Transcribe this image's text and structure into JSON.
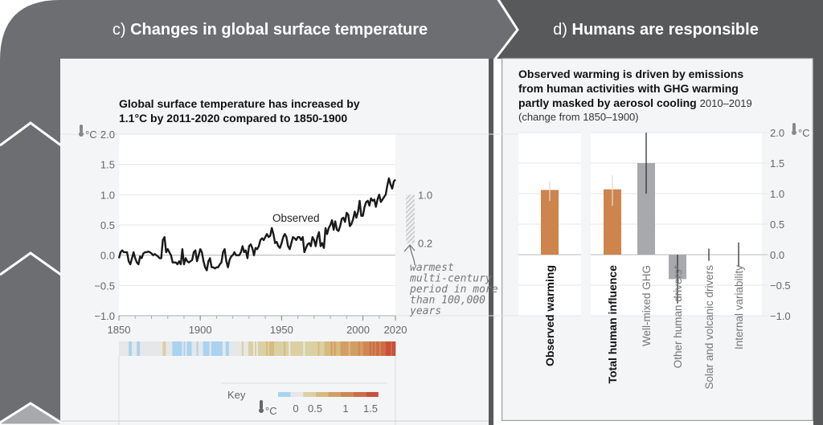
{
  "panel_c": {
    "letter": "c)",
    "heading": "Changes in global surface temperature"
  },
  "panel_d": {
    "letter": "d)",
    "heading": "Humans are responsible"
  },
  "colors": {
    "background_grey": "#6d6e71",
    "header_dark": "#58595b",
    "panel_bg": "#f4f5f7",
    "orange_bar": "#cd844d",
    "grey_bar": "#a7a9ac",
    "stripe_key": [
      "#a9d3f0",
      "#e6e7e8",
      "#dad0a2",
      "#d6bb80",
      "#d19f64",
      "#cf8756",
      "#cc6d45",
      "#c8503a"
    ]
  },
  "chart_data": [
    {
      "type": "line",
      "title": "Global surface temperature has increased by 1.1°C by 2011-2020 compared to 1850-1900",
      "ylabel": "°C",
      "ylim": [
        -1.0,
        2.0
      ],
      "yticks": [
        "2.0",
        "1.5",
        "1.0",
        "0.5",
        "0.0",
        "−0.5",
        "−1.0"
      ],
      "xlim": [
        1850,
        2020
      ],
      "xticks": [
        "1850",
        "1900",
        "1950",
        "2000",
        "2020"
      ],
      "grid": true,
      "series": [
        {
          "name": "Observed",
          "x_start": 1850,
          "values": [
            -0.05,
            0.05,
            0.08,
            0.05,
            0.05,
            0.05,
            -0.1,
            -0.15,
            -0.05,
            0.05,
            -0.05,
            -0.12,
            -0.15,
            -0.02,
            -0.05,
            0.03,
            0.05,
            0.05,
            0.06,
            0.05,
            0.03,
            0.0,
            0.02,
            0.0,
            -0.02,
            -0.05,
            -0.05,
            0.25,
            0.3,
            0.05,
            0.1,
            0.05,
            0.0,
            -0.12,
            -0.12,
            -0.12,
            -0.15,
            -0.1,
            -0.15,
            0.1,
            -0.15,
            -0.05,
            -0.1,
            -0.12,
            -0.1,
            -0.08,
            0.05,
            0.08,
            -0.1,
            0.0,
            0.1,
            0.05,
            -0.1,
            -0.2,
            -0.25,
            -0.1,
            -0.05,
            -0.2,
            -0.2,
            -0.22,
            -0.2,
            -0.2,
            -0.15,
            -0.12,
            0.05,
            0.1,
            -0.1,
            -0.2,
            -0.08,
            -0.02,
            0.0,
            0.05,
            0.0,
            0.0,
            0.0,
            0.05,
            0.15,
            0.05,
            0.08,
            -0.05,
            0.15,
            0.18,
            0.12,
            0.0,
            0.12,
            0.1,
            0.15,
            0.25,
            0.28,
            0.25,
            0.3,
            0.35,
            0.3,
            0.32,
            0.45,
            0.35,
            0.2,
            0.22,
            0.15,
            0.12,
            0.2,
            0.3,
            0.35,
            0.3,
            0.15,
            0.1,
            0.2,
            0.3,
            0.28,
            0.25,
            0.3,
            0.3,
            0.25,
            0.3,
            0.05,
            0.12,
            0.18,
            0.2,
            0.15,
            0.3,
            0.25,
            0.15,
            0.3,
            0.38,
            0.15,
            0.2,
            0.12,
            0.45,
            0.35,
            0.45,
            0.5,
            0.58,
            0.42,
            0.56,
            0.42,
            0.4,
            0.48,
            0.6,
            0.62,
            0.55,
            0.7,
            0.67,
            0.48,
            0.52,
            0.6,
            0.72,
            0.62,
            0.72,
            0.9,
            0.65,
            0.65,
            0.8,
            0.88,
            0.9,
            0.82,
            0.94,
            0.9,
            0.92,
            0.8,
            0.92,
            1.0,
            0.88,
            0.92,
            0.96,
            1.0,
            1.15,
            1.27,
            1.17,
            1.1,
            1.22,
            1.25
          ]
        }
      ],
      "paleo_range": {
        "low": 0.2,
        "high": 1.0,
        "low_label": "0.2",
        "high_label": "1.0"
      },
      "annotation": [
        "warmest",
        "multi-century",
        "period in more",
        "than 100,000",
        "years"
      ],
      "stripes_key": {
        "label": "Key",
        "unit": "°C",
        "tick_labels": [
          "0",
          "0.5",
          "1",
          "1.5"
        ]
      }
    },
    {
      "type": "bar",
      "title_bold": [
        "Observed warming is driven by emissions",
        "from human activities with GHG warming",
        "partly masked by aerosol cooling"
      ],
      "title_period": "2010–2019",
      "subtitle": "(change from 1850–1900)",
      "ylabel": "°C",
      "ylim": [
        -1.0,
        2.0
      ],
      "yticks": [
        "2.0",
        "1.5",
        "1.0",
        "0.5",
        "0.0",
        "−0.5",
        "−1.0"
      ],
      "grid": true,
      "categories": [
        "Observed warming",
        "Total human influence",
        "Well-mixed GHG",
        "Other human drivers*",
        "Solar and volcanic drivers",
        "Internal variability"
      ],
      "values": [
        1.06,
        1.07,
        1.5,
        -0.4,
        0.0,
        0.0
      ],
      "error_low": [
        0.88,
        0.8,
        1.0,
        -0.8,
        -0.1,
        -0.2
      ],
      "error_high": [
        1.21,
        1.3,
        2.0,
        0.0,
        0.1,
        0.2
      ],
      "bar_colors": [
        "orange",
        "orange",
        "grey",
        "grey",
        "none",
        "none"
      ]
    }
  ]
}
